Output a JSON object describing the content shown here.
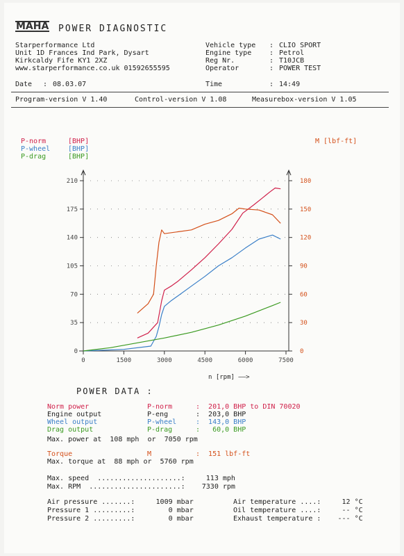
{
  "header": {
    "logo": "MAHA",
    "title": "POWER DIAGNOSTIC",
    "company": [
      "Starperformance Ltd",
      "Unit 1D Frances Ind Park, Dysart",
      "Kirkcaldy Fife KY1 2XZ",
      "www.starperformance.co.uk 01592655595"
    ],
    "vehicle_type_label": "Vehicle type",
    "vehicle_type": "CLIO SPORT",
    "engine_type_label": "Engine type",
    "engine_type": "Petrol",
    "reg_label": "Reg Nr.",
    "reg": "T10JCB",
    "operator_label": "Operator",
    "operator": "POWER TEST",
    "date_label": "Date",
    "date": "08.03.07",
    "time_label": "Time",
    "time": "14:49",
    "program_version": "Program-version V 1.40",
    "control_version": "Control-version V 1.08",
    "measurebox_version": "Measurebox-version V 1.05"
  },
  "legend": {
    "p_norm": "P-norm",
    "p_wheel": "P-wheel",
    "p_drag": "P-drag",
    "unit": "[BHP]",
    "torque": "M [lbf-ft]"
  },
  "chart_data": {
    "type": "line",
    "xlabel": "n [rpm] ——>",
    "xlim": [
      0,
      7500
    ],
    "x_ticks": [
      "0",
      "1500",
      "3000",
      "4500",
      "6000",
      "7500"
    ],
    "ylim_left": [
      0,
      210
    ],
    "y_ticks_left": [
      "0",
      "35",
      "70",
      "105",
      "140",
      "175",
      "210"
    ],
    "ylim_right": [
      0,
      180
    ],
    "y_ticks_right": [
      "0",
      "30",
      "60",
      "90",
      "120",
      "150",
      "180"
    ],
    "grid": "dotted",
    "series": [
      {
        "name": "P-norm",
        "axis": "left",
        "color": "#d0204a",
        "x": [
          2000,
          2400,
          2750,
          2900,
          3000,
          3250,
          3500,
          4000,
          4500,
          5000,
          5500,
          5900,
          6300,
          6600,
          6900,
          7100,
          7300
        ],
        "y": [
          16,
          22,
          35,
          62,
          75,
          80,
          86,
          100,
          115,
          132,
          150,
          170,
          180,
          188,
          196,
          201,
          200
        ]
      },
      {
        "name": "P-wheel",
        "axis": "left",
        "color": "#3a7fc8",
        "x": [
          0,
          1500,
          2500,
          2700,
          2800,
          2900,
          3000,
          3250,
          3500,
          4000,
          4500,
          5000,
          5500,
          6000,
          6500,
          7000,
          7300
        ],
        "y": [
          0,
          2,
          6,
          18,
          30,
          45,
          55,
          62,
          68,
          80,
          92,
          105,
          115,
          127,
          138,
          143,
          138
        ]
      },
      {
        "name": "P-drag",
        "axis": "left",
        "color": "#3a9a20",
        "x": [
          0,
          1000,
          2000,
          3000,
          4000,
          5000,
          6000,
          7000,
          7300
        ],
        "y": [
          0,
          4,
          10,
          16,
          23,
          32,
          43,
          56,
          60
        ]
      },
      {
        "name": "M",
        "axis": "right",
        "color": "#d4501a",
        "x": [
          2000,
          2400,
          2600,
          2700,
          2800,
          2900,
          3000,
          3500,
          4000,
          4500,
          5000,
          5500,
          5760,
          6000,
          6500,
          7000,
          7300
        ],
        "y": [
          40,
          50,
          60,
          90,
          115,
          128,
          124,
          126,
          128,
          134,
          138,
          145,
          151,
          150,
          149,
          144,
          135
        ]
      }
    ]
  },
  "power_data": {
    "title": "POWER DATA  :",
    "rows": [
      {
        "label": "Norm power",
        "sym": "P-norm",
        "value": ":  201,0 BHP to DIN 70020",
        "color": "#d0204a"
      },
      {
        "label": "Engine output",
        "sym": "P-eng",
        "value": ":  203,0 BHP",
        "color": "#222222"
      },
      {
        "label": "Wheel output",
        "sym": "P-wheel",
        "value": ":  143,0 BHP",
        "color": "#3a7fc8"
      },
      {
        "label": "Drag output",
        "sym": "P-drag",
        "value": ":   60,0 BHP",
        "color": "#3a9a20"
      }
    ],
    "max_power": "Max. power at  108 mph  or  7050 rpm",
    "torque_label": "Torque",
    "torque_sym": "M",
    "torque_value": ":  151 lbf-ft",
    "max_torque": "Max. torque at  88 mph or  5760 rpm",
    "max_speed": "Max. speed  ....................:     113 mph",
    "max_rpm": "Max. RPM  ......................:    7330 rpm",
    "air_pressure": "Air pressure .......:     1009 mbar",
    "pressure1": "Pressure 1 .........:        0 mbar",
    "pressure2": "Pressure 2 .........:        0 mbar",
    "air_temp": "Air temperature ....:     12 °C",
    "oil_temp": "Oil temperature ....:     -- °C",
    "exhaust_temp": "Exhaust temperature :    --- °C"
  }
}
